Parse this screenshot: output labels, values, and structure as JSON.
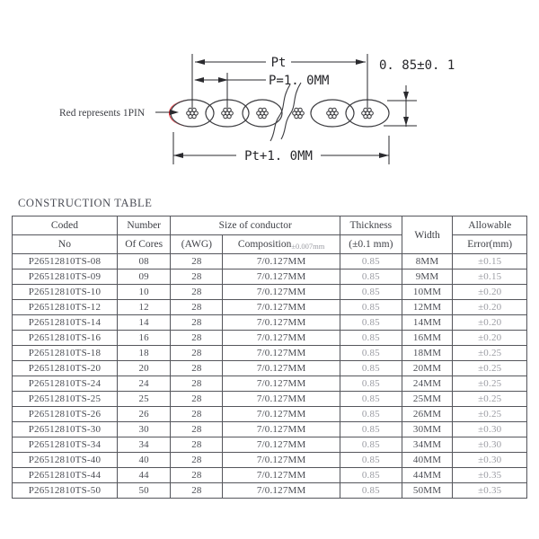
{
  "diagram": {
    "dim_pt": "Pt",
    "dim_p": "P=1. 0MM",
    "dim_thickness": "0. 85±0. 1",
    "dim_pt_plus": "Pt+1. 0MM",
    "red_note": "Red represents 1PIN",
    "pin_color": "#e60b16"
  },
  "table": {
    "title": "CONSTRUCTION TABLE",
    "header": {
      "coded_top": "Coded",
      "coded_bottom": "No",
      "number_top": "Number",
      "number_bottom": "Of Cores",
      "size_top": "Size of conductor",
      "awg": "(AWG)",
      "composition": "Composition",
      "composition_tol": "±0.007mm",
      "thickness_top": "Thickness",
      "thickness_bottom": "(±0.1 mm)",
      "width": "Width",
      "allowable_top": "Allowable",
      "allowable_bottom": "Error(mm)"
    },
    "rows": [
      {
        "code": "P26512810TS-08",
        "cores": "08",
        "awg": "28",
        "composition": "7/0.127MM",
        "thickness": "0.85",
        "width": "8MM",
        "error": "±0.15"
      },
      {
        "code": "P26512810TS-09",
        "cores": "09",
        "awg": "28",
        "composition": "7/0.127MM",
        "thickness": "0.85",
        "width": "9MM",
        "error": "±0.15"
      },
      {
        "code": "P26512810TS-10",
        "cores": "10",
        "awg": "28",
        "composition": "7/0.127MM",
        "thickness": "0.85",
        "width": "10MM",
        "error": "±0.20"
      },
      {
        "code": "P26512810TS-12",
        "cores": "12",
        "awg": "28",
        "composition": "7/0.127MM",
        "thickness": "0.85",
        "width": "12MM",
        "error": "±0.20"
      },
      {
        "code": "P26512810TS-14",
        "cores": "14",
        "awg": "28",
        "composition": "7/0.127MM",
        "thickness": "0.85",
        "width": "14MM",
        "error": "±0.20"
      },
      {
        "code": "P26512810TS-16",
        "cores": "16",
        "awg": "28",
        "composition": "7/0.127MM",
        "thickness": "0.85",
        "width": "16MM",
        "error": "±0.20"
      },
      {
        "code": "P26512810TS-18",
        "cores": "18",
        "awg": "28",
        "composition": "7/0.127MM",
        "thickness": "0.85",
        "width": "18MM",
        "error": "±0.25"
      },
      {
        "code": "P26512810TS-20",
        "cores": "20",
        "awg": "28",
        "composition": "7/0.127MM",
        "thickness": "0.85",
        "width": "20MM",
        "error": "±0.25"
      },
      {
        "code": "P26512810TS-24",
        "cores": "24",
        "awg": "28",
        "composition": "7/0.127MM",
        "thickness": "0.85",
        "width": "24MM",
        "error": "±0.25"
      },
      {
        "code": "P26512810TS-25",
        "cores": "25",
        "awg": "28",
        "composition": "7/0.127MM",
        "thickness": "0.85",
        "width": "25MM",
        "error": "±0.25"
      },
      {
        "code": "P26512810TS-26",
        "cores": "26",
        "awg": "28",
        "composition": "7/0.127MM",
        "thickness": "0.85",
        "width": "26MM",
        "error": "±0.25"
      },
      {
        "code": "P26512810TS-30",
        "cores": "30",
        "awg": "28",
        "composition": "7/0.127MM",
        "thickness": "0.85",
        "width": "30MM",
        "error": "±0.30"
      },
      {
        "code": "P26512810TS-34",
        "cores": "34",
        "awg": "28",
        "composition": "7/0.127MM",
        "thickness": "0.85",
        "width": "34MM",
        "error": "±0.30"
      },
      {
        "code": "P26512810TS-40",
        "cores": "40",
        "awg": "28",
        "composition": "7/0.127MM",
        "thickness": "0.85",
        "width": "40MM",
        "error": "±0.30"
      },
      {
        "code": "P26512810TS-44",
        "cores": "44",
        "awg": "28",
        "composition": "7/0.127MM",
        "thickness": "0.85",
        "width": "44MM",
        "error": "±0.35"
      },
      {
        "code": "P26512810TS-50",
        "cores": "50",
        "awg": "28",
        "composition": "7/0.127MM",
        "thickness": "0.85",
        "width": "50MM",
        "error": "±0.35"
      }
    ]
  }
}
